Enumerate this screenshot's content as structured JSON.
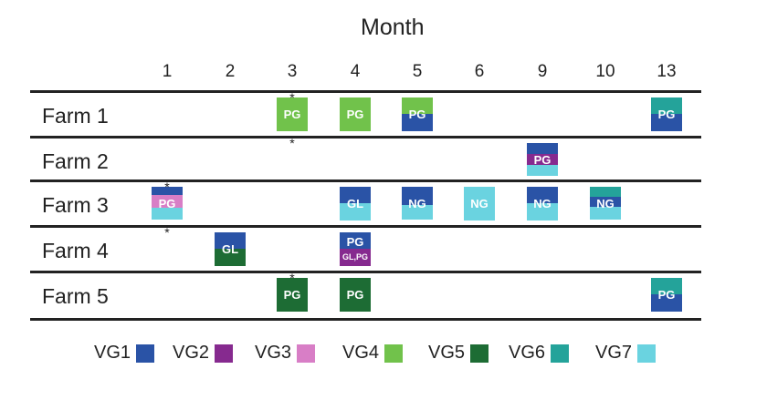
{
  "colors": {
    "VG1": "#2a53a6",
    "VG2": "#862a8f",
    "VG3": "#d87ec6",
    "VG4": "#71c24b",
    "VG5": "#1d6c34",
    "VG6": "#24a39a",
    "VG7": "#6ad3e0"
  },
  "chart_data": {
    "type": "table",
    "title": "Month",
    "months": [
      "1",
      "2",
      "3",
      "4",
      "5",
      "6",
      "9",
      "10",
      "13"
    ],
    "farms": [
      "Farm 1",
      "Farm 2",
      "Farm 3",
      "Farm 4",
      "Farm 5"
    ],
    "legend": [
      "VG1",
      "VG2",
      "VG3",
      "VG4",
      "VG5",
      "VG6",
      "VG7"
    ],
    "stars": [
      {
        "farm": "Farm 1",
        "month": "3"
      },
      {
        "farm": "Farm 2",
        "month": "3"
      },
      {
        "farm": "Farm 3",
        "month": "1"
      },
      {
        "farm": "Farm 4",
        "month": "1"
      },
      {
        "farm": "Farm 5",
        "month": "3"
      }
    ],
    "star_symbol": "*",
    "cells": [
      {
        "farm": "Farm 1",
        "month": "3",
        "label": "PG",
        "segments": [
          {
            "group": "VG4",
            "fraction": 1
          }
        ]
      },
      {
        "farm": "Farm 1",
        "month": "4",
        "label": "PG",
        "segments": [
          {
            "group": "VG4",
            "fraction": 1
          }
        ]
      },
      {
        "farm": "Farm 1",
        "month": "5",
        "label": "PG",
        "segments": [
          {
            "group": "VG4",
            "fraction": 0.5
          },
          {
            "group": "VG1",
            "fraction": 0.5
          }
        ]
      },
      {
        "farm": "Farm 1",
        "month": "13",
        "label": "PG",
        "segments": [
          {
            "group": "VG6",
            "fraction": 0.5
          },
          {
            "group": "VG1",
            "fraction": 0.5
          }
        ]
      },
      {
        "farm": "Farm 2",
        "month": "9",
        "label": "PG",
        "segments": [
          {
            "group": "VG1",
            "fraction": 0.33
          },
          {
            "group": "VG2",
            "fraction": 0.34
          },
          {
            "group": "VG7",
            "fraction": 0.33
          }
        ]
      },
      {
        "farm": "Farm 3",
        "month": "1",
        "label": "PG",
        "segments": [
          {
            "group": "VG1",
            "fraction": 0.25
          },
          {
            "group": "VG3",
            "fraction": 0.25
          },
          {
            "group": "VG3",
            "fraction": 0.15
          },
          {
            "group": "VG7",
            "fraction": 0.35
          }
        ]
      },
      {
        "farm": "Farm 3",
        "month": "4",
        "label": "GL",
        "segments": [
          {
            "group": "VG1",
            "fraction": 0.5
          },
          {
            "group": "VG7",
            "fraction": 0.5
          }
        ]
      },
      {
        "farm": "Farm 3",
        "month": "5",
        "label": "NG",
        "segments": [
          {
            "group": "VG1",
            "fraction": 0.55
          },
          {
            "group": "VG7",
            "fraction": 0.45
          }
        ]
      },
      {
        "farm": "Farm 3",
        "month": "6",
        "label": "NG",
        "segments": [
          {
            "group": "VG7",
            "fraction": 1
          }
        ]
      },
      {
        "farm": "Farm 3",
        "month": "9",
        "label": "NG",
        "segments": [
          {
            "group": "VG1",
            "fraction": 0.5
          },
          {
            "group": "VG7",
            "fraction": 0.5
          }
        ]
      },
      {
        "farm": "Farm 3",
        "month": "10",
        "label": "NG",
        "segments": [
          {
            "group": "VG6",
            "fraction": 0.3
          },
          {
            "group": "VG1",
            "fraction": 0.3
          },
          {
            "group": "VG7",
            "fraction": 0.4
          }
        ]
      },
      {
        "farm": "Farm 4",
        "month": "2",
        "label": "GL",
        "segments": [
          {
            "group": "VG1",
            "fraction": 0.5
          },
          {
            "group": "VG5",
            "fraction": 0.5
          }
        ]
      },
      {
        "farm": "Farm 4",
        "month": "4",
        "label": "PG",
        "sublabel": "GL,PG",
        "segments": [
          {
            "group": "VG1",
            "fraction": 0.5
          },
          {
            "group": "VG2",
            "fraction": 0.5
          }
        ]
      },
      {
        "farm": "Farm 5",
        "month": "3",
        "label": "PG",
        "segments": [
          {
            "group": "VG5",
            "fraction": 1
          }
        ]
      },
      {
        "farm": "Farm 5",
        "month": "4",
        "label": "PG",
        "segments": [
          {
            "group": "VG5",
            "fraction": 1
          }
        ]
      },
      {
        "farm": "Farm 5",
        "month": "13",
        "label": "PG",
        "segments": [
          {
            "group": "VG6",
            "fraction": 0.5
          },
          {
            "group": "VG1",
            "fraction": 0.5
          }
        ]
      }
    ]
  }
}
